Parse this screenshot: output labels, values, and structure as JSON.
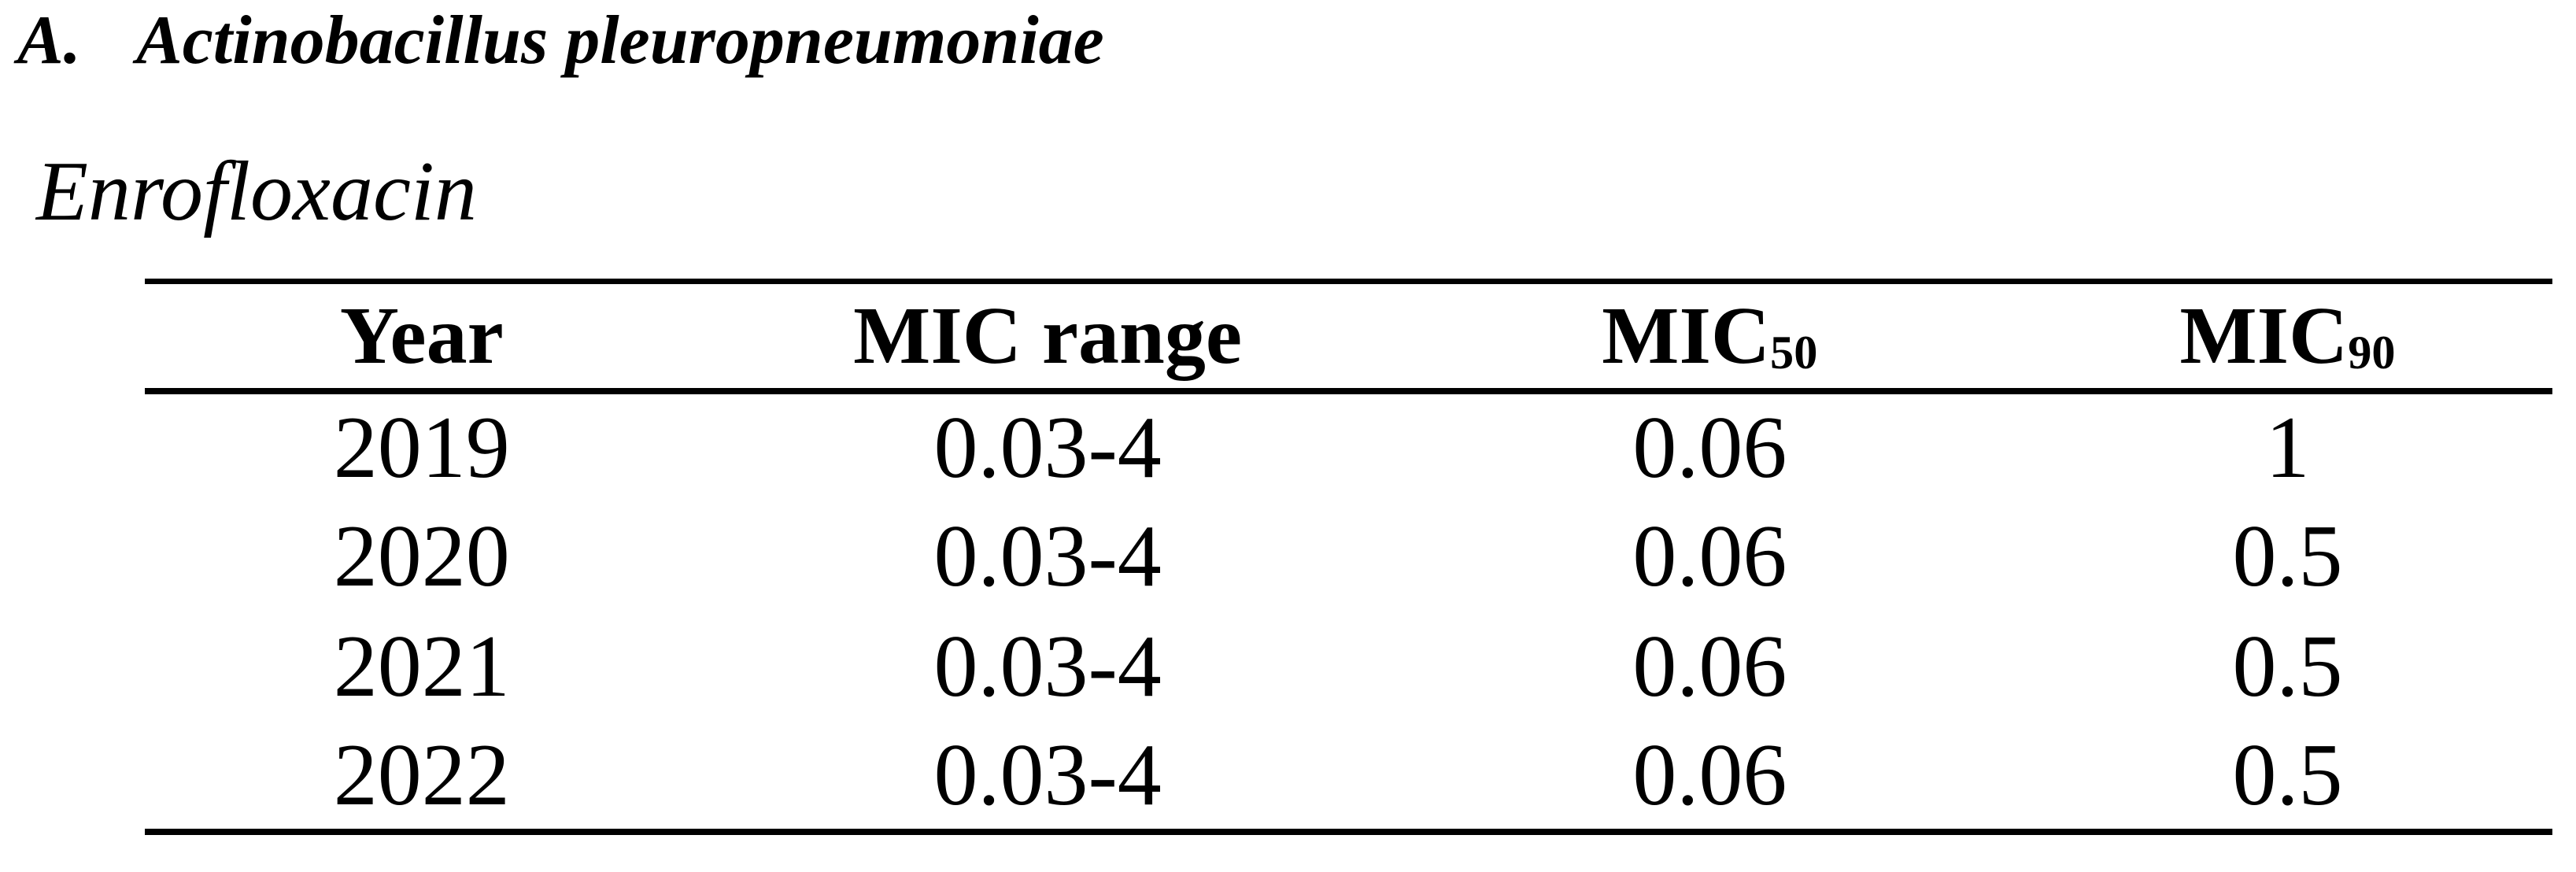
{
  "page": {
    "section_label": "A.",
    "section_title": "Actinobacillus pleuropneumoniae",
    "drug_name": "Enrofloxacin"
  },
  "table": {
    "columns": [
      {
        "text": "Year",
        "sub": ""
      },
      {
        "text": "MIC range",
        "sub": ""
      },
      {
        "text": "MIC",
        "sub": "50"
      },
      {
        "text": "MIC",
        "sub": "90"
      }
    ],
    "rows": [
      {
        "year": "2019",
        "mic_range": "0.03-4",
        "mic50": "0.06",
        "mic90": "1"
      },
      {
        "year": "2020",
        "mic_range": "0.03-4",
        "mic50": "0.06",
        "mic90": "0.5"
      },
      {
        "year": "2021",
        "mic_range": "0.03-4",
        "mic50": "0.06",
        "mic90": "0.5"
      },
      {
        "year": "2022",
        "mic_range": "0.03-4",
        "mic50": "0.06",
        "mic90": "0.5"
      }
    ]
  },
  "colors": {
    "text": "#000000",
    "background": "#ffffff",
    "rule": "#000000"
  }
}
